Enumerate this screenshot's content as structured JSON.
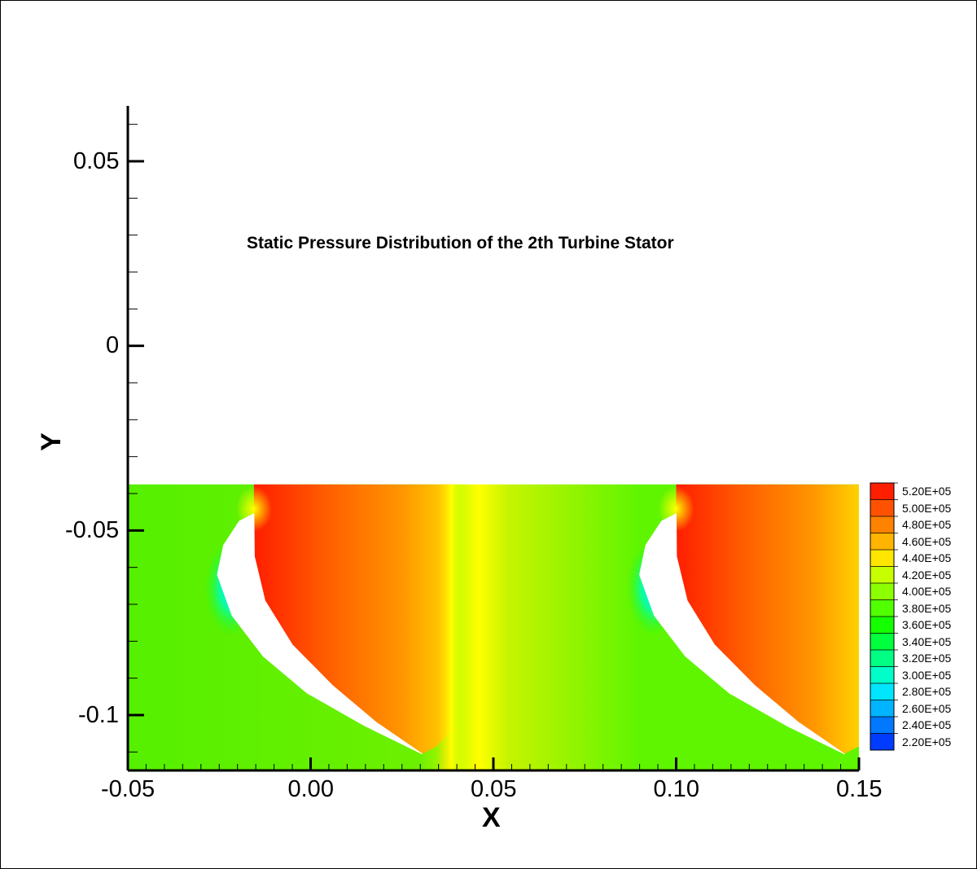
{
  "chart_data": {
    "type": "heatmap",
    "title": "Static Pressure Distribution of the 2th Turbine Stator",
    "xlabel": "X",
    "ylabel": "Y",
    "xlim": [
      -0.05,
      0.15
    ],
    "ylim": [
      -0.115,
      0.065
    ],
    "data_domain": {
      "x": [
        -0.05,
        0.15
      ],
      "y": [
        -0.115,
        -0.0375
      ]
    },
    "x_ticks": [
      {
        "value": -0.05,
        "label": "-0.05"
      },
      {
        "value": 0.0,
        "label": "0.00"
      },
      {
        "value": 0.05,
        "label": "0.05"
      },
      {
        "value": 0.1,
        "label": "0.10"
      },
      {
        "value": 0.15,
        "label": "0.15"
      }
    ],
    "y_ticks": [
      {
        "value": 0.05,
        "label": "0.05"
      },
      {
        "value": 0.0,
        "label": "0"
      },
      {
        "value": -0.05,
        "label": "-0.05"
      },
      {
        "value": -0.1,
        "label": "-0.1"
      }
    ],
    "legend": {
      "placement": "right",
      "levels": [
        {
          "value": 520000,
          "label": "5.20E+05",
          "color": "#ff1e00"
        },
        {
          "value": 500000,
          "label": "5.00E+05",
          "color": "#ff5200"
        },
        {
          "value": 480000,
          "label": "4.80E+05",
          "color": "#ff8200"
        },
        {
          "value": 460000,
          "label": "4.60E+05",
          "color": "#ffb400"
        },
        {
          "value": 440000,
          "label": "4.40E+05",
          "color": "#ffe600"
        },
        {
          "value": 420000,
          "label": "4.20E+05",
          "color": "#c8ff00"
        },
        {
          "value": 400000,
          "label": "4.00E+05",
          "color": "#8cff00"
        },
        {
          "value": 380000,
          "label": "3.80E+05",
          "color": "#50ff00"
        },
        {
          "value": 360000,
          "label": "3.60E+05",
          "color": "#14ff00"
        },
        {
          "value": 340000,
          "label": "3.40E+05",
          "color": "#00ff3c"
        },
        {
          "value": 320000,
          "label": "3.20E+05",
          "color": "#00ff82"
        },
        {
          "value": 300000,
          "label": "3.00E+05",
          "color": "#00ffc8"
        },
        {
          "value": 280000,
          "label": "2.80E+05",
          "color": "#00e6ff"
        },
        {
          "value": 260000,
          "label": "2.60E+05",
          "color": "#00b4ff"
        },
        {
          "value": 240000,
          "label": "2.40E+05",
          "color": "#0078ff"
        },
        {
          "value": 220000,
          "label": "2.20E+05",
          "color": "#003cff"
        }
      ]
    },
    "blades": [
      {
        "leading_edge": [
          -0.0155,
          -0.0455
        ],
        "trailing_edge": [
          0.0305,
          -0.1105
        ],
        "pressure_side": [
          [
            -0.0155,
            -0.0455
          ],
          [
            -0.0154,
            -0.057
          ],
          [
            -0.0125,
            -0.069
          ],
          [
            -0.005,
            -0.081
          ],
          [
            0.006,
            -0.092
          ],
          [
            0.018,
            -0.102
          ],
          [
            0.0305,
            -0.1105
          ]
        ],
        "suction_side": [
          [
            0.0305,
            -0.1105
          ],
          [
            0.015,
            -0.103
          ],
          [
            -0.001,
            -0.094
          ],
          [
            -0.013,
            -0.084
          ],
          [
            -0.0215,
            -0.073
          ],
          [
            -0.0255,
            -0.062
          ],
          [
            -0.0238,
            -0.054
          ],
          [
            -0.0195,
            -0.0475
          ],
          [
            -0.0155,
            -0.0455
          ]
        ]
      },
      {
        "leading_edge": [
          0.1,
          -0.0455
        ],
        "trailing_edge": [
          0.146,
          -0.1105
        ],
        "pressure_side": [
          [
            0.1,
            -0.0455
          ],
          [
            0.1001,
            -0.057
          ],
          [
            0.103,
            -0.069
          ],
          [
            0.1105,
            -0.081
          ],
          [
            0.1215,
            -0.092
          ],
          [
            0.1335,
            -0.102
          ],
          [
            0.146,
            -0.1105
          ]
        ],
        "suction_side": [
          [
            0.146,
            -0.1105
          ],
          [
            0.1305,
            -0.103
          ],
          [
            0.1145,
            -0.094
          ],
          [
            0.1025,
            -0.084
          ],
          [
            0.094,
            -0.073
          ],
          [
            0.09,
            -0.062
          ],
          [
            0.0917,
            -0.054
          ],
          [
            0.096,
            -0.0475
          ],
          [
            0.1,
            -0.0455
          ]
        ]
      }
    ]
  }
}
